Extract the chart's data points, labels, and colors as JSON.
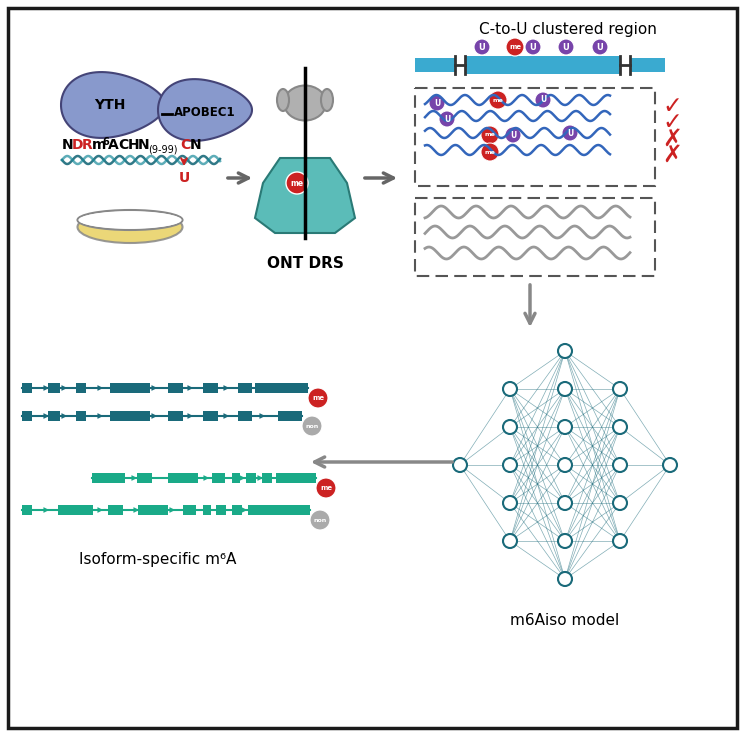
{
  "bg_color": "#ffffff",
  "border_color": "#1a1a1a",
  "teal_dark": "#1a6a7a",
  "teal_mid": "#1a8a9a",
  "teal_light": "#5bbcb8",
  "blue_signal": "#3366bb",
  "gray_signal": "#999999",
  "red_color": "#cc2222",
  "purple_color": "#7744aa",
  "slate_blue": "#8899cc",
  "gray_ont": "#aaaaaa",
  "arrow_gray": "#888888",
  "yellow_dish": "#d4b830",
  "label_ont": "ONT DRS",
  "label_ctu": "C-to-U clustered region",
  "label_isoform": "Isoform-specific m⁶A",
  "label_m6aiso": "m6Aiso model",
  "label_yth": "YTH",
  "label_apobec": "APOBEC1",
  "track_teal": "#1a6a7a",
  "track_teal2": "#1aaa88"
}
